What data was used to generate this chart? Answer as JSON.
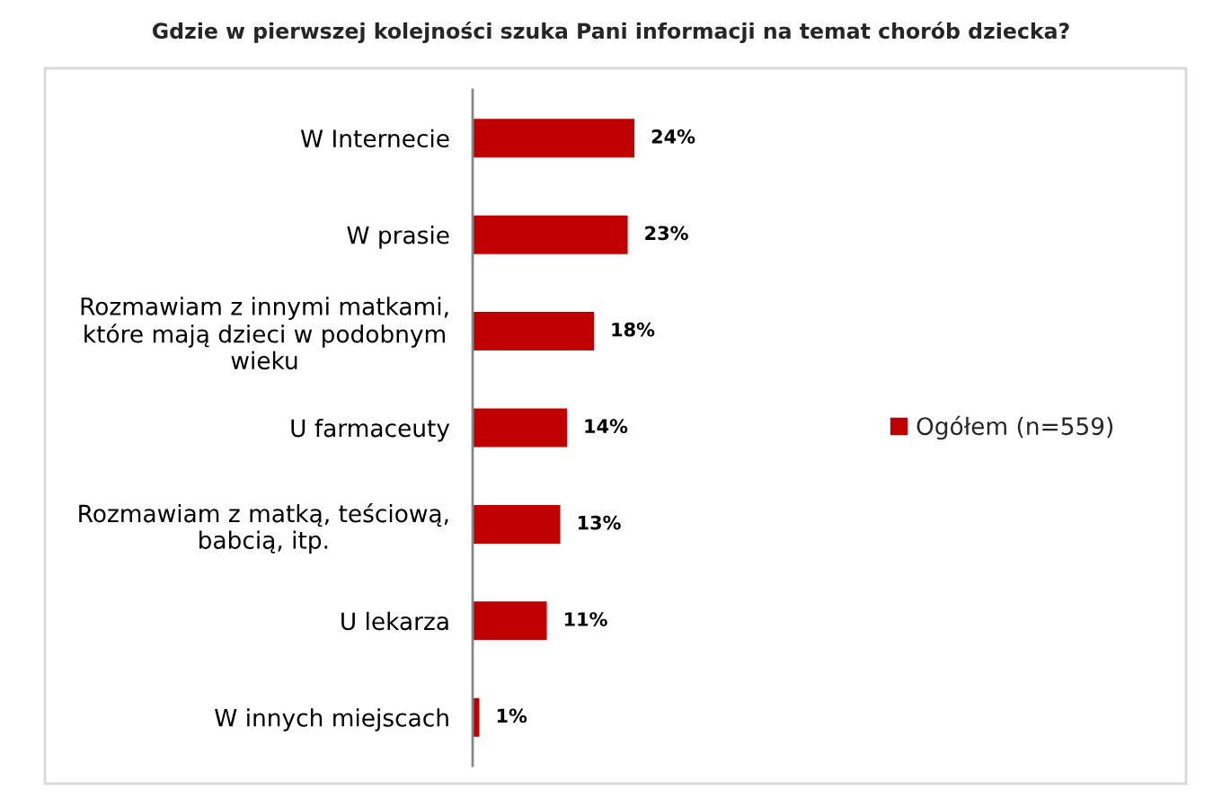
{
  "chart_data": {
    "type": "bar",
    "orientation": "horizontal",
    "title": "Gdzie w pierwszej kolejności szuka Pani informacji na temat chorób dziecka?",
    "categories": [
      "W Internecie",
      "W prasie",
      "Rozmawiam z innymi matkami,\nktóre mają dzieci w podobnym\nwieku",
      "U farmaceuty",
      "Rozmawiam z matką, teściową,\nbabcią, itp.",
      "U lekarza",
      "W innych miejscach"
    ],
    "series": [
      {
        "name": "Ogółem (n=559)",
        "color": "#c00000",
        "values": [
          24,
          23,
          18,
          14,
          13,
          11,
          1
        ],
        "value_labels": [
          "24%",
          "23%",
          "18%",
          "14%",
          "13%",
          "11%",
          "1%"
        ]
      }
    ],
    "legend": "right",
    "tick_labels": "y"
  }
}
